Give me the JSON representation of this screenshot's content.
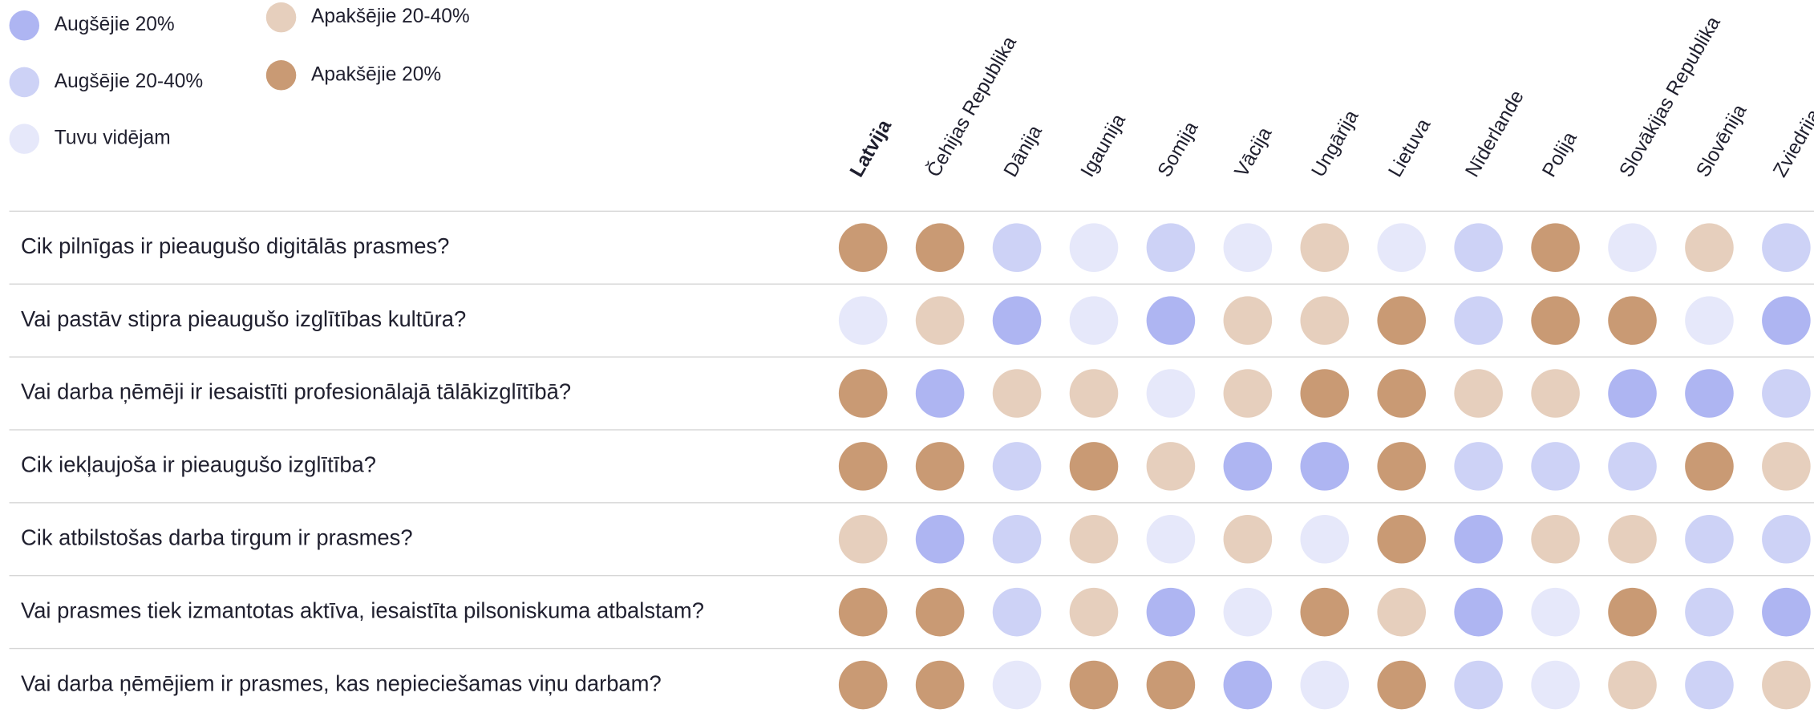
{
  "legend": [
    {
      "label": "Augšējie 20%",
      "color": "#aeb5f2"
    },
    {
      "label": "Augšējie 20-40%",
      "color": "#cdd2f6"
    },
    {
      "label": "Tuvu vidējam",
      "color": "#e6e8fa"
    },
    {
      "label": "Apakšējie 20-40%",
      "color": "#e6cfbd"
    },
    {
      "label": "Apakšējie 20%",
      "color": "#c99a74"
    }
  ],
  "columns": [
    "Latvija",
    "Čehijas Republika",
    "Dānija",
    "Igaunija",
    "Somija",
    "Vācija",
    "Ungārija",
    "Lietuva",
    "Nīderlande",
    "Polija",
    "Slovākijas Republika",
    "Slovēnija",
    "Zviedrija"
  ],
  "highlight_column": 0,
  "rows": [
    {
      "question": "Cik pilnīgas ir pieaugušo digitālās prasmes?",
      "cells": [
        4,
        4,
        1,
        2,
        1,
        2,
        3,
        2,
        1,
        4,
        2,
        3,
        1
      ]
    },
    {
      "question": "Vai pastāv stipra pieaugušo izglītības kultūra?",
      "cells": [
        2,
        3,
        0,
        2,
        0,
        3,
        3,
        4,
        1,
        4,
        4,
        2,
        0
      ]
    },
    {
      "question": "Vai darba ņēmēji ir iesaistīti profesionālajā tālākizglītībā?",
      "cells": [
        4,
        0,
        3,
        3,
        2,
        3,
        4,
        4,
        3,
        3,
        0,
        0,
        1
      ]
    },
    {
      "question": "Cik iekļaujoša ir pieaugušo izglītība?",
      "cells": [
        4,
        4,
        1,
        4,
        3,
        0,
        0,
        4,
        1,
        1,
        1,
        4,
        3
      ]
    },
    {
      "question": "Cik atbilstošas darba tirgum ir prasmes?",
      "cells": [
        3,
        0,
        1,
        3,
        2,
        3,
        2,
        4,
        0,
        3,
        3,
        1,
        1
      ]
    },
    {
      "question": "Vai prasmes tiek izmantotas aktīva, iesaistīta pilsoniskuma atbalstam?",
      "cells": [
        4,
        4,
        1,
        3,
        0,
        2,
        4,
        3,
        0,
        2,
        4,
        1,
        0
      ]
    },
    {
      "question": "Vai darba ņēmējiem ir prasmes, kas nepieciešamas viņu darbam?",
      "cells": [
        4,
        4,
        2,
        4,
        4,
        0,
        2,
        4,
        1,
        2,
        3,
        1,
        3
      ]
    }
  ]
}
